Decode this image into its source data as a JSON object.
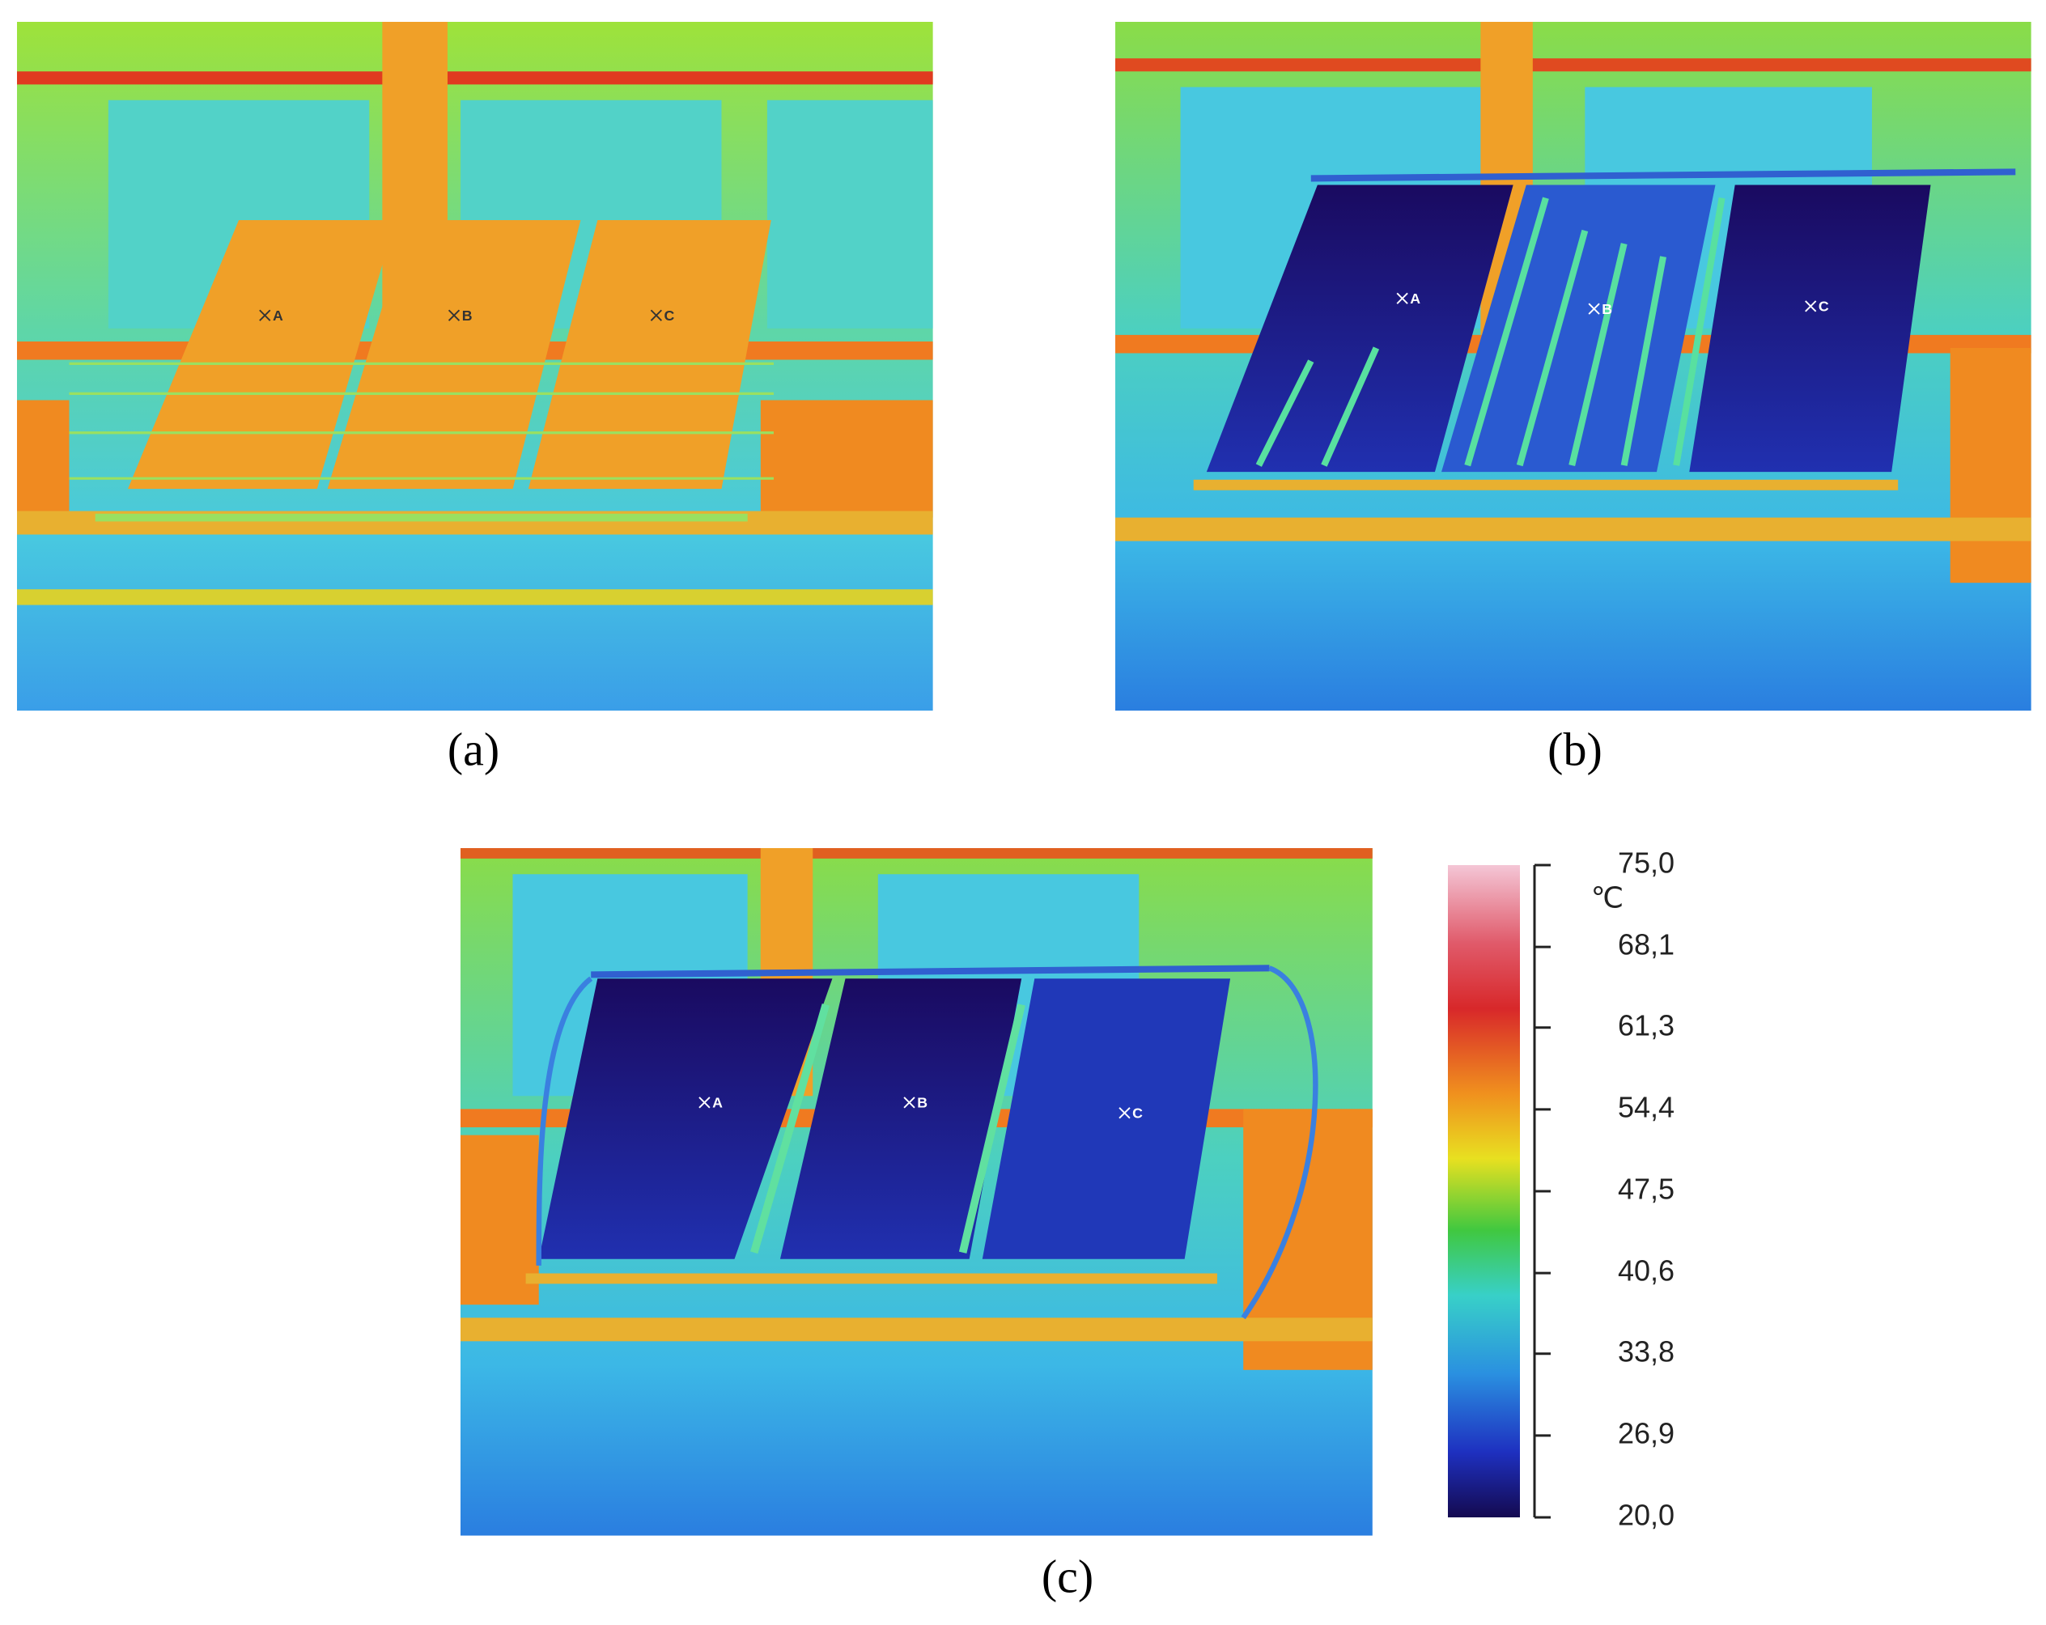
{
  "panels": [
    {
      "label": "(a)",
      "points": [
        "A",
        "B",
        "C"
      ]
    },
    {
      "label": "(b)",
      "points": [
        "A",
        "B",
        "C"
      ]
    },
    {
      "label": "(c)",
      "points": [
        "A",
        "B",
        "C"
      ]
    }
  ],
  "colorbar": {
    "unit": "℃",
    "lim": [
      20,
      75
    ],
    "ticks": [
      {
        "value": 75,
        "label": "75,0"
      },
      {
        "value": 68.1,
        "label": "68,1"
      },
      {
        "value": 61.3,
        "label": "61,3"
      },
      {
        "value": 54.4,
        "label": "54,4"
      },
      {
        "value": 47.5,
        "label": "47,5"
      },
      {
        "value": 40.6,
        "label": "40,6"
      },
      {
        "value": 33.8,
        "label": "33,8"
      },
      {
        "value": 26.9,
        "label": "26,9"
      },
      {
        "value": 20,
        "label": "20,0"
      }
    ]
  }
}
